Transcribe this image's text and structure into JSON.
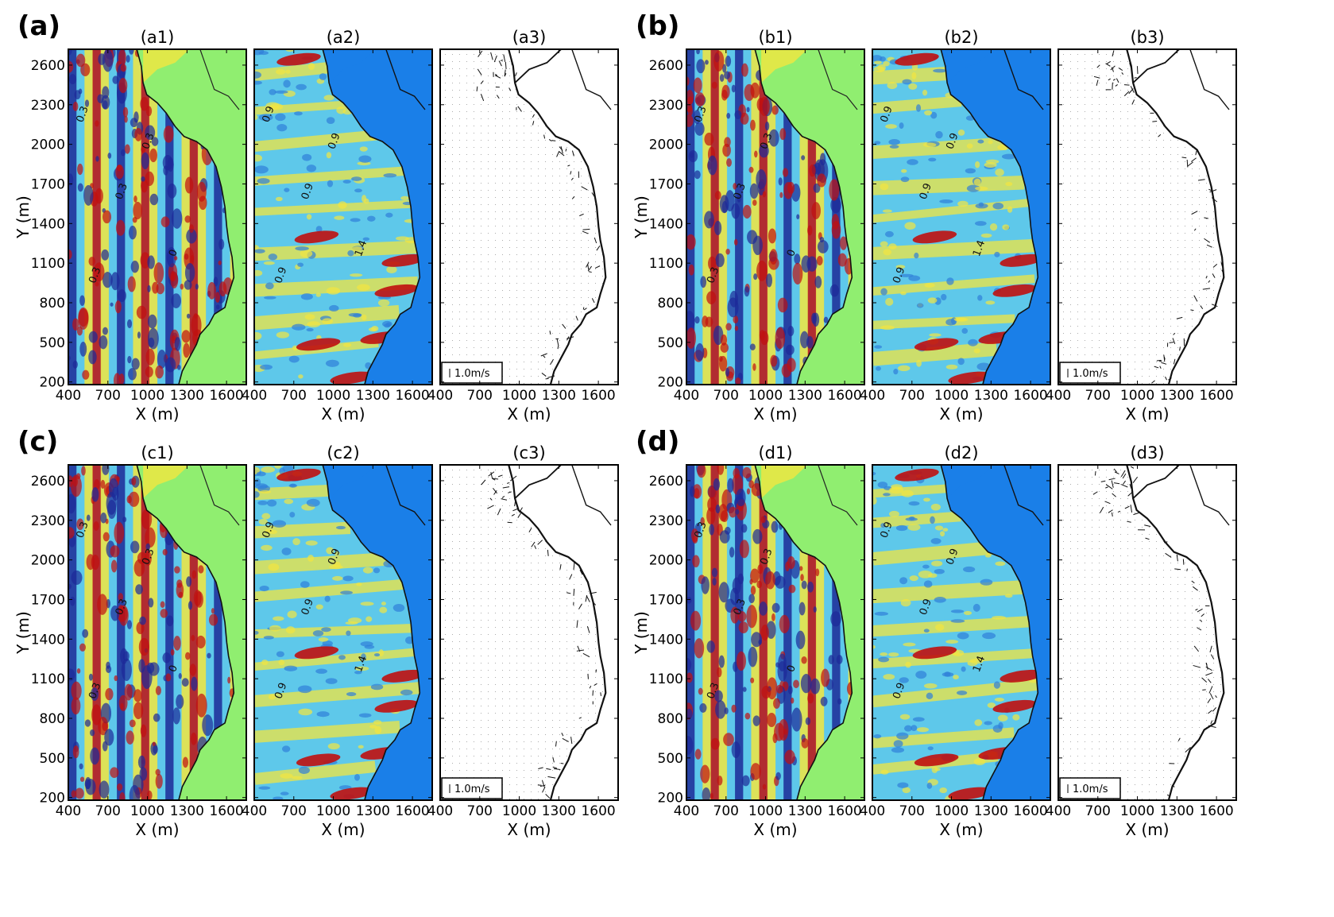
{
  "chart_data": {
    "type": "heatmap",
    "x_ticks": [
      400,
      700,
      1000,
      1300,
      1600
    ],
    "y_ticks": [
      200,
      500,
      800,
      1100,
      1400,
      1700,
      2000,
      2300,
      2600
    ],
    "xlim": [
      400,
      1750
    ],
    "ylim": [
      180,
      2720
    ],
    "xlabel": "X (m)",
    "ylabel": "Y (m)",
    "scale_label": "1.0m/s",
    "groups": [
      {
        "label": "(a)",
        "panels": [
          {
            "title": "(a1)",
            "kind": "surface_elevation",
            "contour_labels": [
              "0.3",
              "0.3",
              "0.3",
              "0.3",
              "0"
            ]
          },
          {
            "title": "(a2)",
            "kind": "wave_height",
            "contour_labels": [
              "0.9",
              "0.9",
              "0.9",
              "0.9",
              "1.4"
            ]
          },
          {
            "title": "(a3)",
            "kind": "velocity_vectors",
            "scale_label": "1.0m/s"
          }
        ]
      },
      {
        "label": "(b)",
        "panels": [
          {
            "title": "(b1)",
            "kind": "surface_elevation",
            "contour_labels": [
              "0.3",
              "0.3",
              "0.3",
              "0.3",
              "0"
            ]
          },
          {
            "title": "(b2)",
            "kind": "wave_height",
            "contour_labels": [
              "0.9",
              "0.9",
              "0.9",
              "0.9",
              "1.4"
            ]
          },
          {
            "title": "(b3)",
            "kind": "velocity_vectors",
            "scale_label": "1.0m/s"
          }
        ]
      },
      {
        "label": "(c)",
        "panels": [
          {
            "title": "(c1)",
            "kind": "surface_elevation",
            "contour_labels": [
              "0.3",
              "0.3",
              "0.3",
              "0.3",
              "0"
            ]
          },
          {
            "title": "(c2)",
            "kind": "wave_height",
            "contour_labels": [
              "0.9",
              "0.9",
              "0.9",
              "0.9",
              "1.4"
            ]
          },
          {
            "title": "(c3)",
            "kind": "velocity_vectors",
            "scale_label": "1.0m/s"
          }
        ]
      },
      {
        "label": "(d)",
        "panels": [
          {
            "title": "(d1)",
            "kind": "surface_elevation",
            "contour_labels": [
              "0.3",
              "0.3",
              "0.3",
              "0.3",
              "0"
            ]
          },
          {
            "title": "(d2)",
            "kind": "wave_height",
            "contour_labels": [
              "0.9",
              "0.9",
              "0.9",
              "0.9",
              "1.4"
            ]
          },
          {
            "title": "(d3)",
            "kind": "velocity_vectors",
            "scale_label": "1.0m/s"
          }
        ]
      }
    ]
  },
  "colors": {
    "land_green": "#90ee70",
    "sea_blue": "#1a7fe8",
    "wave_red": "#c01010",
    "wave_yellow": "#f2e640",
    "wave_cyan": "#5ec8ea",
    "wave_dark_blue": "#1c2a98"
  }
}
